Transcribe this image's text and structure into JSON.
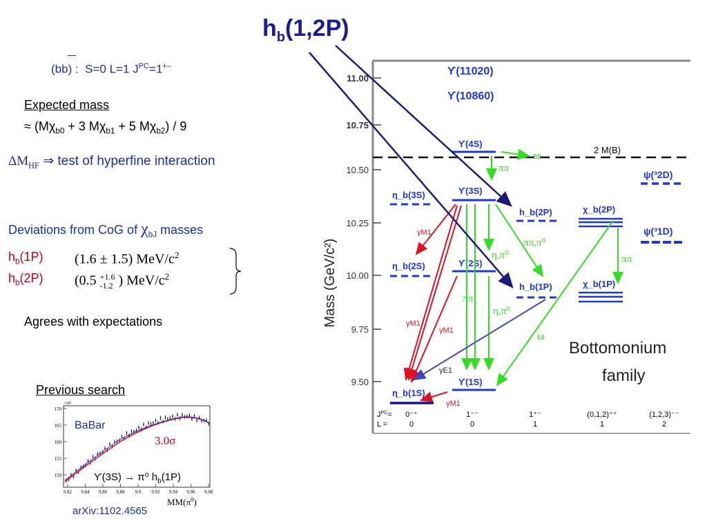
{
  "title": {
    "main": "h",
    "sub": "b",
    "rest": "(1,2P)"
  },
  "quantum": {
    "bbbar": "(bb) :",
    "text": "S=0 L=1 J",
    "sup": "PC",
    "eq": "=1",
    "sup2": "+–"
  },
  "expected": {
    "heading": "Expected mass",
    "approx": "≈",
    "formula_parts": [
      "(Mχ",
      "b0",
      " + 3 Mχ",
      "b1",
      " + 5 Mχ",
      "b2",
      ") / 9"
    ]
  },
  "hf": {
    "delta": "ΔM",
    "sub": "HF",
    "arrow": "⇒",
    "text": "test of hyperfine interaction"
  },
  "deviations": {
    "text": "Deviations from CoG of",
    "chi": "χ",
    "sub": "bJ",
    "rest": "masses"
  },
  "results": [
    {
      "name": "h",
      "sub": "b",
      "state": "(1P)",
      "value": "(1.6 ± 1.5) MeV/c",
      "sup": "2"
    },
    {
      "name": "h",
      "sub": "b",
      "state": "(2P)",
      "value_pre": "(0.5",
      "up": "+1.6",
      "down": "-1.2",
      "value_post": ") MeV/c",
      "sup": "2"
    }
  ],
  "agrees": "Agrees  with expectations",
  "previous": {
    "heading": "Previous search",
    "babar": "BaBar",
    "sigma": "3.0σ",
    "decay": "ϒ(3S) → π⁰ h",
    "decay_sub": "b",
    "decay_end": "(1P)",
    "xlabel": "MM(π",
    "xlabel_sup": "0",
    "xlabel_end": ")",
    "arxiv": "arXiv:1102.4565",
    "yticks": [
      "170",
      "165",
      "160",
      "155",
      "150"
    ],
    "xticks": [
      "9.82",
      "9.84",
      "9.86",
      "9.88",
      "9.9",
      "9.92",
      "9.94",
      "9.96",
      "9.98"
    ],
    "scale": "×10³"
  },
  "diagram": {
    "ylabel": "Mass (GeV/c²)",
    "yticks": [
      "11.00",
      "10.75",
      "10.50",
      "10.25",
      "10.00",
      "9.75",
      "9.50"
    ],
    "bb_threshold": "2 M(B)",
    "bbbar": "BB",
    "family": [
      "Bottomonium",
      "family"
    ],
    "jpc_label": "J",
    "jpc_sup": "PC",
    "jpc_eq": "=",
    "l_label": "L =",
    "columns": [
      {
        "jpc": "0⁻⁺",
        "l": "0"
      },
      {
        "jpc": "1⁻⁻",
        "l": "0"
      },
      {
        "jpc": "1⁺⁻",
        "l": "1"
      },
      {
        "jpc": "(0,1,2)⁺⁺",
        "l": "1"
      },
      {
        "jpc": "(1,2,3)⁻⁻",
        "l": "2"
      }
    ],
    "states": {
      "u11020": "ϒ(11020)",
      "u10860": "ϒ(10860)",
      "u4s": "ϒ(4S)",
      "u3s": "ϒ(3S)",
      "u2s": "ϒ(2S)",
      "u1s": "ϒ(1S)",
      "eta3s": "η_b(3S)",
      "eta2s": "η_b(2S)",
      "eta1s": "η_b(1S)",
      "hb2p": "h_b(2P)",
      "hb1p": "h_b(1P)",
      "chi2p": "χ_b(2P)",
      "chi1p": "χ_b(1P)",
      "psi2d": "ψ(³2D)",
      "psi1d": "ψ(³1D)"
    },
    "transitions": {
      "pipi": "ππ",
      "etapi": "η,π⁰",
      "pipipi": "ππ,π⁰",
      "gm1": "γM1",
      "ge1": "γE1",
      "omega": "ω"
    }
  },
  "colors": {
    "blue": "#1f2fa0",
    "state_blue": "#2036d8",
    "red": "#e01020",
    "green": "#33dd22",
    "navy": "#1a1a7a",
    "dark_red": "#c0001a"
  }
}
